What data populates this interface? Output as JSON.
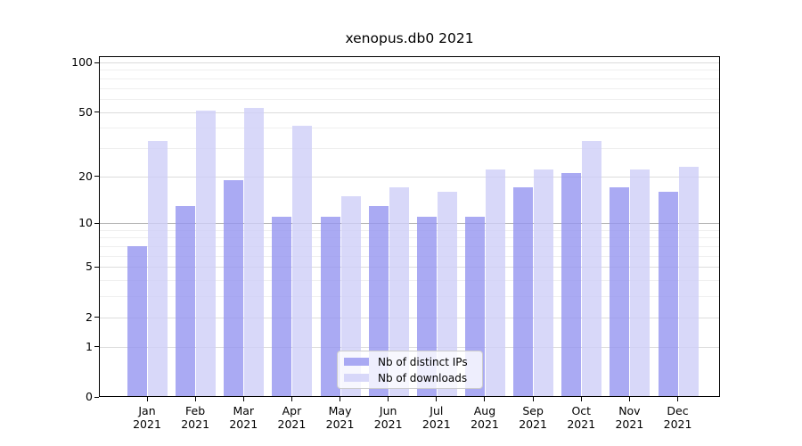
{
  "title": "xenopus.db0 2021",
  "chart_data": {
    "type": "bar",
    "title": "xenopus.db0 2021",
    "categories": [
      "Jan",
      "Feb",
      "Mar",
      "Apr",
      "May",
      "Jun",
      "Jul",
      "Aug",
      "Sep",
      "Oct",
      "Nov",
      "Dec"
    ],
    "year_label": "2021",
    "series": [
      {
        "name": "Nb of distinct IPs",
        "slug": "distinct-ips",
        "color": "#9595f0cc",
        "values": [
          7,
          13,
          19,
          11,
          11,
          13,
          11,
          11,
          17,
          21,
          17,
          16
        ]
      },
      {
        "name": "Nb of downloads",
        "slug": "downloads",
        "color": "#cecef8cc",
        "values": [
          33,
          51,
          53,
          41,
          15,
          17,
          16,
          22,
          22,
          33,
          22,
          23
        ]
      }
    ],
    "yscale": "log1p",
    "ylim": [
      0,
      100
    ],
    "yticks": [
      0,
      1,
      2,
      5,
      10,
      20,
      50,
      100
    ],
    "yticks_minor": [
      3,
      4,
      6,
      7,
      8,
      9,
      30,
      40,
      60,
      70,
      80,
      90
    ],
    "grid": true,
    "legend_position": "lower center",
    "style": {
      "grid_major_color": "#dcdcdc",
      "grid_minor_color": "#efefef",
      "grid_line10_color": "#b3b3b3",
      "axis_color": "#000000",
      "background": "#ffffff"
    }
  }
}
